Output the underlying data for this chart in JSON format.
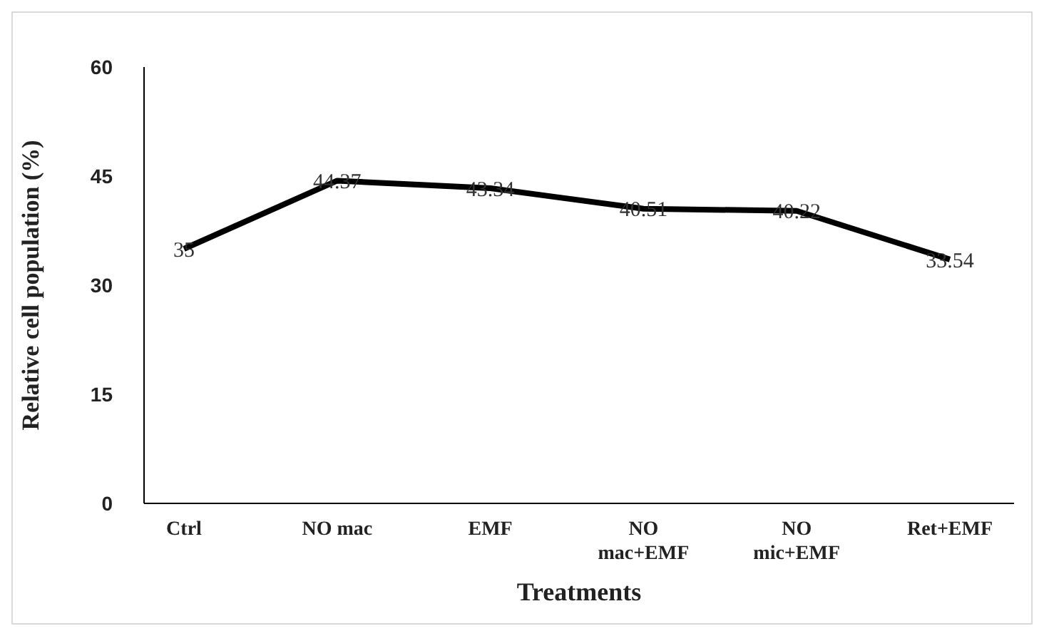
{
  "chart_data": {
    "type": "line",
    "xlabel": "Treatments",
    "ylabel": "Relative cell population (%)",
    "categories": [
      "Ctrl",
      "NO mac",
      "EMF",
      "NO mac+EMF",
      "NO mic+EMF",
      "Ret+EMF"
    ],
    "series": [
      {
        "color": "#000000",
        "values": [
          35,
          44.37,
          43.34,
          40.51,
          40.22,
          33.54
        ]
      }
    ],
    "ylim": [
      0,
      60
    ],
    "yticks": [
      0,
      15,
      30,
      45,
      60
    ],
    "data_labels": true,
    "grid": false,
    "legend": false,
    "marker": "none",
    "line_style": "solid"
  }
}
